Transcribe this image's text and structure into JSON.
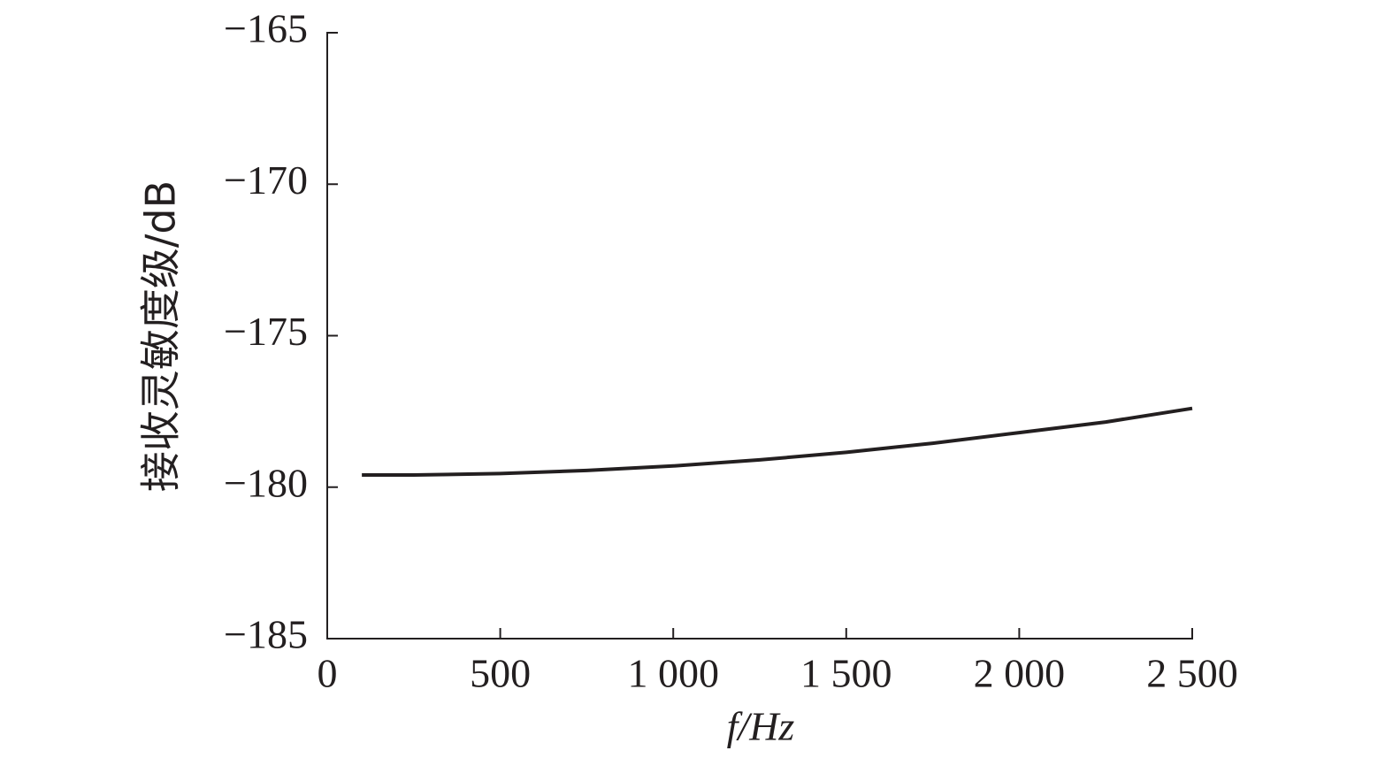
{
  "chart_data": {
    "type": "line",
    "x_label": "f/Hz",
    "y_label": "接收灵敏度级/dB",
    "x": [
      100,
      250,
      500,
      750,
      1000,
      1250,
      1500,
      1750,
      2000,
      2250,
      2500
    ],
    "series": [
      {
        "color": "#231f20",
        "values": [
          -179.6,
          -179.6,
          -179.55,
          -179.45,
          -179.3,
          -179.1,
          -178.85,
          -178.55,
          -178.2,
          -177.85,
          -177.4
        ]
      }
    ],
    "xlim": [
      0,
      2500
    ],
    "xticks": [
      0,
      500,
      {
        "value": 1000,
        "label": "1 000"
      },
      {
        "value": 1500,
        "label": "1 500"
      },
      {
        "value": 2000,
        "label": "2 000"
      },
      {
        "value": 2500,
        "label": "2 500"
      }
    ],
    "ylim": [
      -185,
      -165
    ],
    "yticks": [
      {
        "value": -185,
        "label": "−185"
      },
      {
        "value": -180,
        "label": "−180"
      },
      {
        "value": -175,
        "label": "−175"
      },
      {
        "value": -170,
        "label": "−170"
      },
      {
        "value": -165,
        "label": "−165"
      }
    ]
  }
}
